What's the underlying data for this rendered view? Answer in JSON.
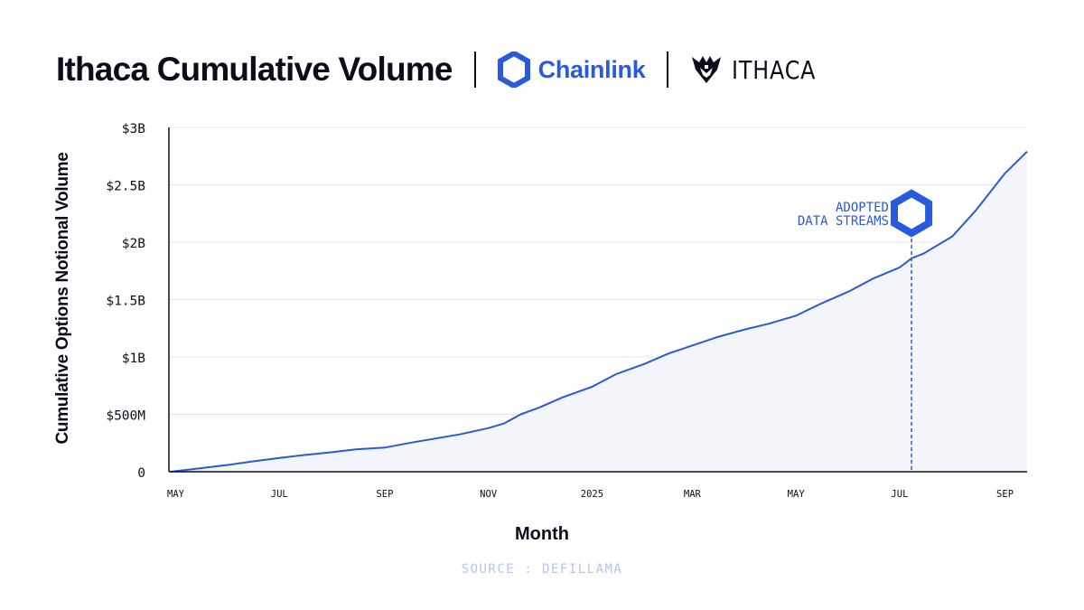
{
  "header": {
    "title": "Ithaca Cumulative Volume",
    "chainlink_text": "Chainlink",
    "ithaca_text": "ITHACA"
  },
  "colors": {
    "accent": "#2a5ada",
    "text": "#0c0d1a",
    "grid": "#dde5f5",
    "fill": "#f3f5fb",
    "source": "#b5c5ee"
  },
  "chart_data": {
    "type": "area",
    "xlabel": "Month",
    "ylabel": "Cumulative Options Notional Volume",
    "ylim": [
      0,
      3000000000
    ],
    "y_ticks": [
      {
        "value": 0,
        "label": "0"
      },
      {
        "value": 500000000,
        "label": "$500M"
      },
      {
        "value": 1000000000,
        "label": "$1B"
      },
      {
        "value": 1500000000,
        "label": "$1.5B"
      },
      {
        "value": 2000000000,
        "label": "$2B"
      },
      {
        "value": 2500000000,
        "label": "$2.5B"
      },
      {
        "value": 3000000000,
        "label": "$3B"
      }
    ],
    "x_ticks": [
      {
        "date": "2024-05-01",
        "label": "MAY"
      },
      {
        "date": "2024-07-01",
        "label": "JUL"
      },
      {
        "date": "2024-09-01",
        "label": "SEP"
      },
      {
        "date": "2024-11-01",
        "label": "NOV"
      },
      {
        "date": "2025-01-01",
        "label": "2025"
      },
      {
        "date": "2025-03-01",
        "label": "MAR"
      },
      {
        "date": "2025-05-01",
        "label": "MAY"
      },
      {
        "date": "2025-07-01",
        "label": "JUL"
      },
      {
        "date": "2025-09-01",
        "label": "SEP"
      }
    ],
    "x_range": [
      "2024-04-27",
      "2025-09-14"
    ],
    "grid": "horizontal",
    "series": [
      {
        "points": [
          [
            "2024-04-28",
            0
          ],
          [
            "2024-05-15",
            30000000
          ],
          [
            "2024-06-01",
            60000000
          ],
          [
            "2024-06-15",
            90000000
          ],
          [
            "2024-07-01",
            120000000
          ],
          [
            "2024-07-15",
            145000000
          ],
          [
            "2024-08-01",
            170000000
          ],
          [
            "2024-08-15",
            195000000
          ],
          [
            "2024-09-01",
            210000000
          ],
          [
            "2024-09-15",
            250000000
          ],
          [
            "2024-10-01",
            290000000
          ],
          [
            "2024-10-15",
            325000000
          ],
          [
            "2024-11-01",
            380000000
          ],
          [
            "2024-11-10",
            420000000
          ],
          [
            "2024-11-20",
            500000000
          ],
          [
            "2024-12-01",
            560000000
          ],
          [
            "2024-12-15",
            650000000
          ],
          [
            "2025-01-01",
            740000000
          ],
          [
            "2025-01-15",
            850000000
          ],
          [
            "2025-02-01",
            940000000
          ],
          [
            "2025-02-15",
            1030000000
          ],
          [
            "2025-03-01",
            1100000000
          ],
          [
            "2025-03-15",
            1170000000
          ],
          [
            "2025-04-01",
            1240000000
          ],
          [
            "2025-04-15",
            1290000000
          ],
          [
            "2025-05-01",
            1360000000
          ],
          [
            "2025-05-15",
            1460000000
          ],
          [
            "2025-06-01",
            1570000000
          ],
          [
            "2025-06-15",
            1680000000
          ],
          [
            "2025-07-01",
            1780000000
          ],
          [
            "2025-07-08",
            1860000000
          ],
          [
            "2025-07-15",
            1900000000
          ],
          [
            "2025-08-01",
            2050000000
          ],
          [
            "2025-08-15",
            2280000000
          ],
          [
            "2025-09-01",
            2600000000
          ],
          [
            "2025-09-14",
            2790000000
          ]
        ]
      }
    ],
    "annotation": {
      "date": "2025-07-08",
      "line1": "ADOPTED",
      "line2": "DATA STREAMS"
    },
    "source": "SOURCE : DEFILLAMA"
  }
}
